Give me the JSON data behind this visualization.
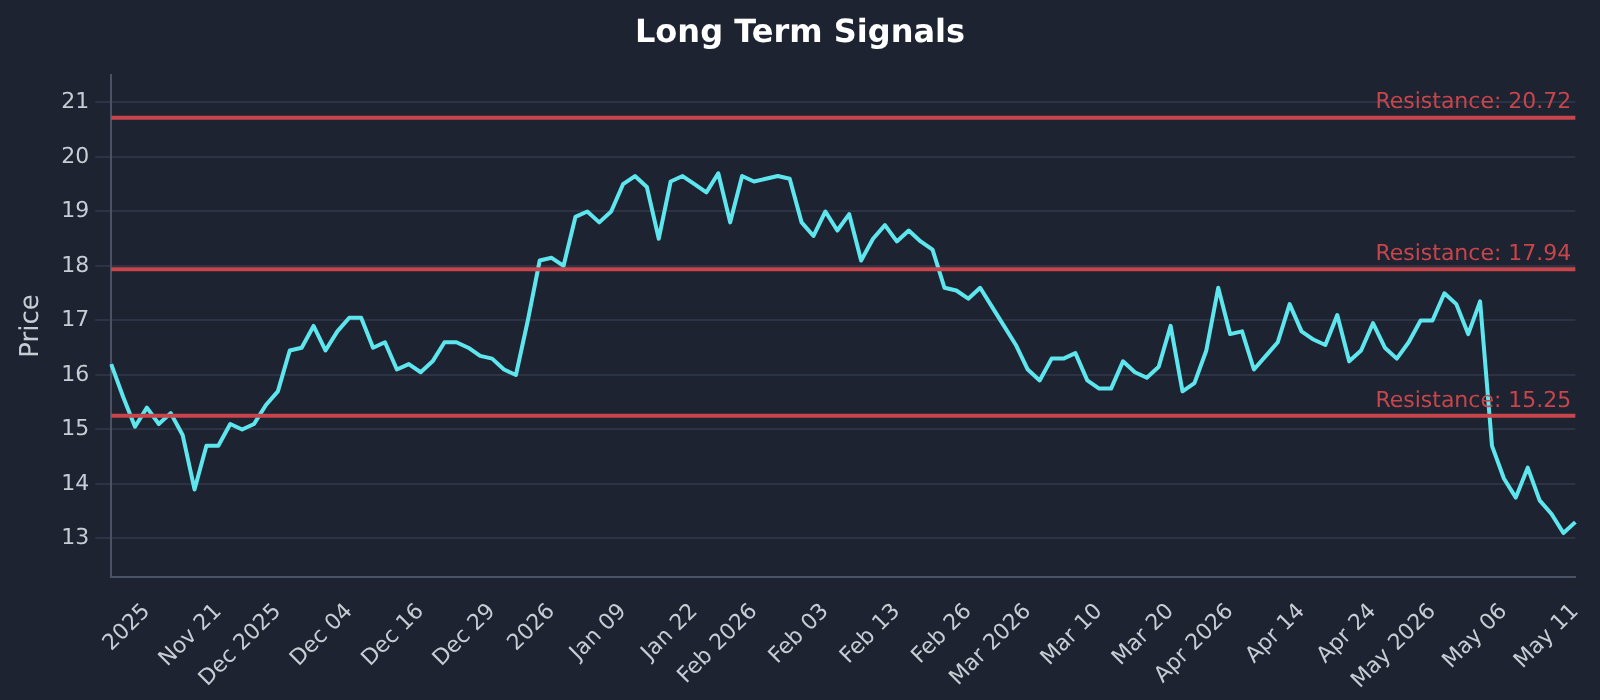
{
  "chart_data": {
    "type": "line",
    "title": "Long Term Signals",
    "ylabel": "Price",
    "categories": [
      null,
      null,
      null,
      "2025",
      null,
      null,
      null,
      null,
      null,
      "Nov 21",
      null,
      null,
      null,
      null,
      "Dec 2025",
      null,
      null,
      null,
      null,
      null,
      "Dec 04",
      null,
      null,
      null,
      null,
      null,
      "Dec 16",
      null,
      null,
      null,
      null,
      null,
      "Dec 29",
      null,
      null,
      null,
      null,
      "2026",
      null,
      null,
      null,
      null,
      null,
      "Jan 09",
      null,
      null,
      null,
      null,
      null,
      "Jan 22",
      null,
      null,
      null,
      null,
      "Feb 2026",
      null,
      null,
      null,
      null,
      null,
      "Feb 03",
      null,
      null,
      null,
      null,
      null,
      "Feb 13",
      null,
      null,
      null,
      null,
      null,
      "Feb 26",
      null,
      null,
      null,
      null,
      "Mar 2026",
      null,
      null,
      null,
      null,
      null,
      "Mar 10",
      null,
      null,
      null,
      null,
      null,
      "Mar 20",
      null,
      null,
      null,
      null,
      "Apr 2026",
      null,
      null,
      null,
      null,
      null,
      "Apr 14",
      null,
      null,
      null,
      null,
      null,
      "Apr 24",
      null,
      null,
      null,
      null,
      "May 2026",
      null,
      null,
      null,
      null,
      null,
      "May 06",
      null,
      null,
      null,
      null,
      null,
      "May 11"
    ],
    "series": [
      {
        "color": "#5ee6ee",
        "values": [
          16.2,
          15.6,
          15.05,
          15.4,
          15.1,
          15.3,
          14.9,
          13.9,
          14.7,
          14.7,
          15.1,
          15.0,
          15.1,
          15.45,
          15.7,
          16.45,
          16.5,
          16.9,
          16.45,
          16.8,
          17.05,
          17.05,
          16.5,
          16.6,
          16.1,
          16.2,
          16.05,
          16.25,
          16.6,
          16.6,
          16.5,
          16.35,
          16.3,
          16.1,
          16.0,
          17.0,
          18.1,
          18.15,
          18.0,
          18.9,
          19.0,
          18.8,
          19.0,
          19.5,
          19.65,
          19.45,
          18.5,
          19.55,
          19.65,
          19.5,
          19.35,
          19.7,
          18.8,
          19.65,
          19.55,
          19.6,
          19.65,
          19.6,
          18.8,
          18.55,
          19.0,
          18.65,
          18.95,
          18.1,
          18.5,
          18.75,
          18.45,
          18.65,
          18.45,
          18.3,
          17.6,
          17.55,
          17.4,
          17.6,
          17.25,
          16.9,
          16.55,
          16.1,
          15.9,
          16.3,
          16.3,
          16.4,
          15.9,
          15.75,
          15.75,
          16.25,
          16.05,
          15.95,
          16.15,
          16.9,
          15.7,
          15.85,
          16.45,
          17.6,
          16.75,
          16.8,
          16.1,
          16.35,
          16.6,
          17.3,
          16.8,
          16.65,
          16.55,
          17.1,
          16.25,
          16.45,
          16.95,
          16.5,
          16.3,
          16.6,
          17.0,
          17.0,
          17.5,
          17.3,
          16.75,
          17.35,
          14.7,
          14.1,
          13.75,
          14.3,
          13.7,
          13.45,
          13.1,
          13.3
        ]
      }
    ],
    "ylim": [
      12.3,
      21.5
    ],
    "yticks": [
      13,
      14,
      15,
      16,
      17,
      18,
      19,
      20,
      21
    ],
    "grid": "y",
    "legend": false,
    "marker": "none",
    "line_style": "solid",
    "ref_lines": [
      {
        "axis": "y",
        "value": 20.72,
        "label": "Resistance: 20.72",
        "color": "#c8454b"
      },
      {
        "axis": "y",
        "value": 17.94,
        "label": "Resistance: 17.94",
        "color": "#c8454b"
      },
      {
        "axis": "y",
        "value": 15.25,
        "label": "Resistance: 15.25",
        "color": "#c8454b"
      }
    ]
  }
}
